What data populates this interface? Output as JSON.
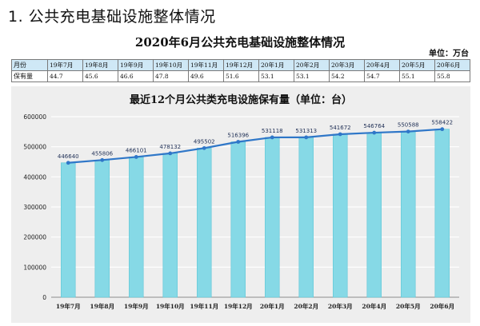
{
  "heading": "1. 公共充电基础设施整体情况",
  "subtitle": "2020年6月公共充电基础设施整体情况",
  "unit_note": "单位：万台",
  "summary_table": {
    "header_label": "月份",
    "value_label": "保有量",
    "months": [
      "19年7月",
      "19年8月",
      "19年9月",
      "19年10月",
      "19年11月",
      "19年12月",
      "20年1月",
      "20年2月",
      "20年3月",
      "20年4月",
      "20年5月",
      "20年6月"
    ],
    "values": [
      "44.7",
      "45.6",
      "46.6",
      "47.8",
      "49.6",
      "51.6",
      "53.1",
      "53.1",
      "54.2",
      "54.7",
      "55.1",
      "55.8"
    ]
  },
  "colors": {
    "bar": "#86d9e6",
    "bar_edge": "#5ec6d6",
    "line": "#2f77c8",
    "panel": "#eeeeee",
    "grid": "#ffffff",
    "table_head": "#cfe8f6"
  },
  "chart_data": {
    "type": "bar",
    "title": "最近12个月公共类充电设施保有量（单位：台）",
    "categories": [
      "19年7月",
      "19年8月",
      "19年9月",
      "19年10月",
      "19年11月",
      "19年12月",
      "20年1月",
      "20年2月",
      "20年3月",
      "20年4月",
      "20年5月",
      "20年6月"
    ],
    "values": [
      446640,
      455806,
      466101,
      478132,
      495502,
      516396,
      531118,
      531313,
      541672,
      546764,
      550588,
      558422
    ],
    "labels": [
      "446640",
      "455806",
      "466101",
      "478132",
      "495502",
      "516396",
      "531118",
      "531313",
      "541672",
      "546764",
      "550588",
      "558422"
    ],
    "overlay": "line",
    "ylim": [
      0,
      600000
    ],
    "yticks": [
      "600000",
      "500000",
      "400000",
      "300000",
      "200000",
      "100000",
      "0"
    ],
    "grid": true,
    "legend": "none"
  }
}
